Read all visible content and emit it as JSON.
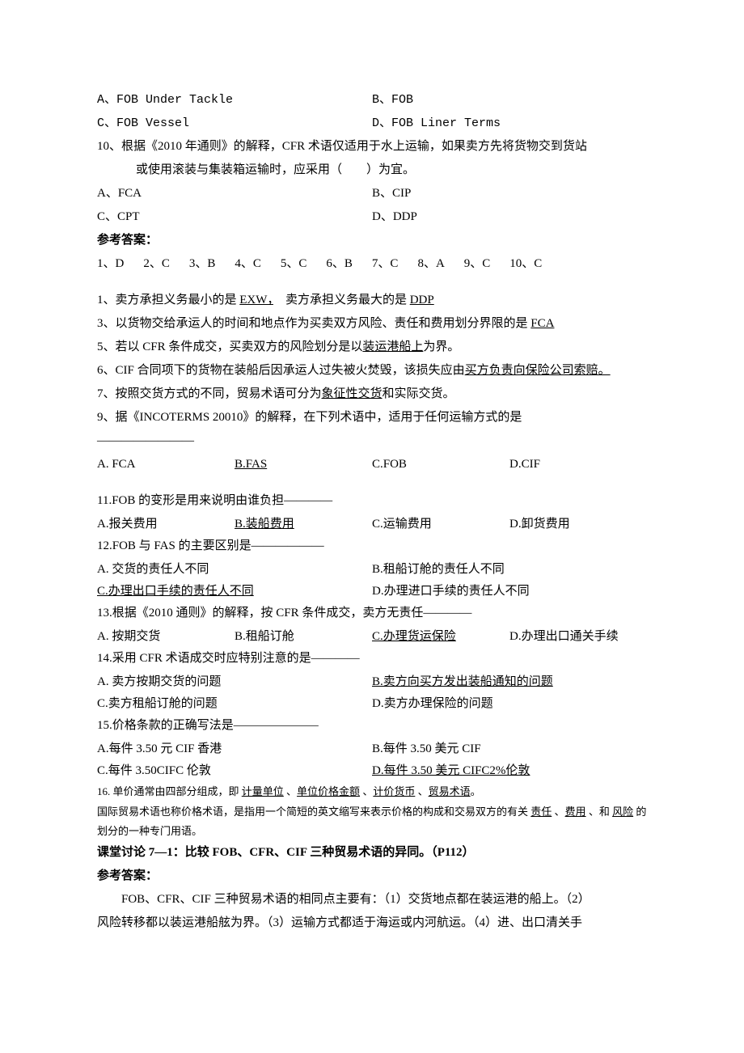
{
  "q9": {
    "a": "A、FOB Under Tackle",
    "b": "B、FOB",
    "c": "C、FOB Vessel",
    "d": "D、FOB Liner Terms"
  },
  "q10": {
    "text1": "10、根据《2010 年通则》的解释，CFR 术语仅适用于水上运输，如果卖方先将货物交到货站",
    "text2": "或使用滚装与集装箱运输时，应采用（　　）为宜。",
    "a": "A、FCA",
    "b": "B、CIP",
    "c": "C、CPT",
    "d": "D、DDP"
  },
  "answers_label": "参考答案：",
  "answers": [
    "1、D",
    "2、C",
    "3、B",
    "4、C",
    "5、C",
    "6、B",
    "7、C",
    "8、A",
    "9、C",
    "10、C"
  ],
  "fill1_pre": "1、卖方承担义务最小的是 ",
  "fill1_u1": "EXW，",
  "fill1_mid": "卖方承担义务最大的是 ",
  "fill1_u2": "DDP",
  "fill3_pre": "3、以货物交给承运人的时间和地点作为买卖双方风险、责任和费用划分界限的是 ",
  "fill3_u": "FCA",
  "fill5_pre": "5、若以 CFR 条件成交，买卖双方的风险划分是以",
  "fill5_u": "装运港船上",
  "fill5_post": "为界。",
  "fill6_pre": "6、CIF 合同项下的货物在装船后因承运人过失被火焚毁，该损失应由",
  "fill6_u": "买方负责向保险公司索赔。",
  "fill7_pre": "7、按照交货方式的不同，贸易术语可分为",
  "fill7_u": "象征性交货",
  "fill7_post": "和实际交货。",
  "fill9_pre": "9、据《INCOTERMS 20010》的解释，在下列术语中，适用于任何运输方式的是",
  "fill9_dash": "————————",
  "q9abcd": {
    "a": "A. FCA",
    "b": "B.FAS",
    "c": "C.FOB",
    "d": "D.CIF"
  },
  "q11": {
    "text": "11.FOB 的变形是用来说明由谁负担————",
    "a": "A.报关费用",
    "b": "B.装船费用",
    "c": "C.运输费用",
    "d": "D.卸货费用"
  },
  "q12": {
    "text": "12.FOB 与 FAS 的主要区别是——————",
    "a": "A. 交货的责任人不同",
    "b": "B.租船订舱的责任人不同",
    "c": "C.办理出口手续的责任人不同",
    "d": "D.办理进口手续的责任人不同"
  },
  "q13": {
    "text": "13.根据《2010 通则》的解释，按 CFR 条件成交，卖方无责任————",
    "a": "A. 按期交货",
    "b": "B.租船订舱",
    "c": "C.办理货运保险",
    "d": "D.办理出口通关手续"
  },
  "q14": {
    "text": "14.采用 CFR 术语成交时应特别注意的是————",
    "a": "A. 卖方按期交货的问题",
    "b": "B.卖方向买方发出装船通知的问题",
    "c": "C.卖方租船订舱的问题",
    "d": "D.卖方办理保险的问题"
  },
  "q15": {
    "text": "15.价格条款的正确写法是———————",
    "a": "A.每件 3.50 元 CIF 香港",
    "b": "B.每件 3.50 美元 CIF",
    "c": "C.每件 3.50CIFC 伦敦",
    "d": "D.每件 3.50 美元 CIFC2%伦敦"
  },
  "q16_pre": "16. 单价通常由四部分组成，即 ",
  "q16_u1": "计量单位",
  "q16_s": " 、",
  "q16_u2": "单位价格金额",
  "q16_u3": "计价货币",
  "q16_u4": "贸易术语",
  "q16_post": "。",
  "intl_pre": "国际贸易术语也称价格术语，是指用一个简短的英文缩写来表示价格的构成和交易双方的有关 ",
  "intl_u1": "责任",
  "intl_s1": " 、",
  "intl_u2": "费用",
  "intl_s2": " 、和 ",
  "intl_u3": "风险",
  "intl_post": " 的划分的一种专门用语。",
  "discuss_title": "课堂讨论 7—1：比较 FOB、CFR、CIF 三种贸易术语的异同。（P112）",
  "discuss_body1": "　　FOB、CFR、CIF 三种贸易术语的相同点主要有：（1）交货地点都在装运港的船上。（2）",
  "discuss_body2": "风险转移都以装运港船舷为界。（3）运输方式都适于海运或内河航运。（4）进、出口清关手"
}
